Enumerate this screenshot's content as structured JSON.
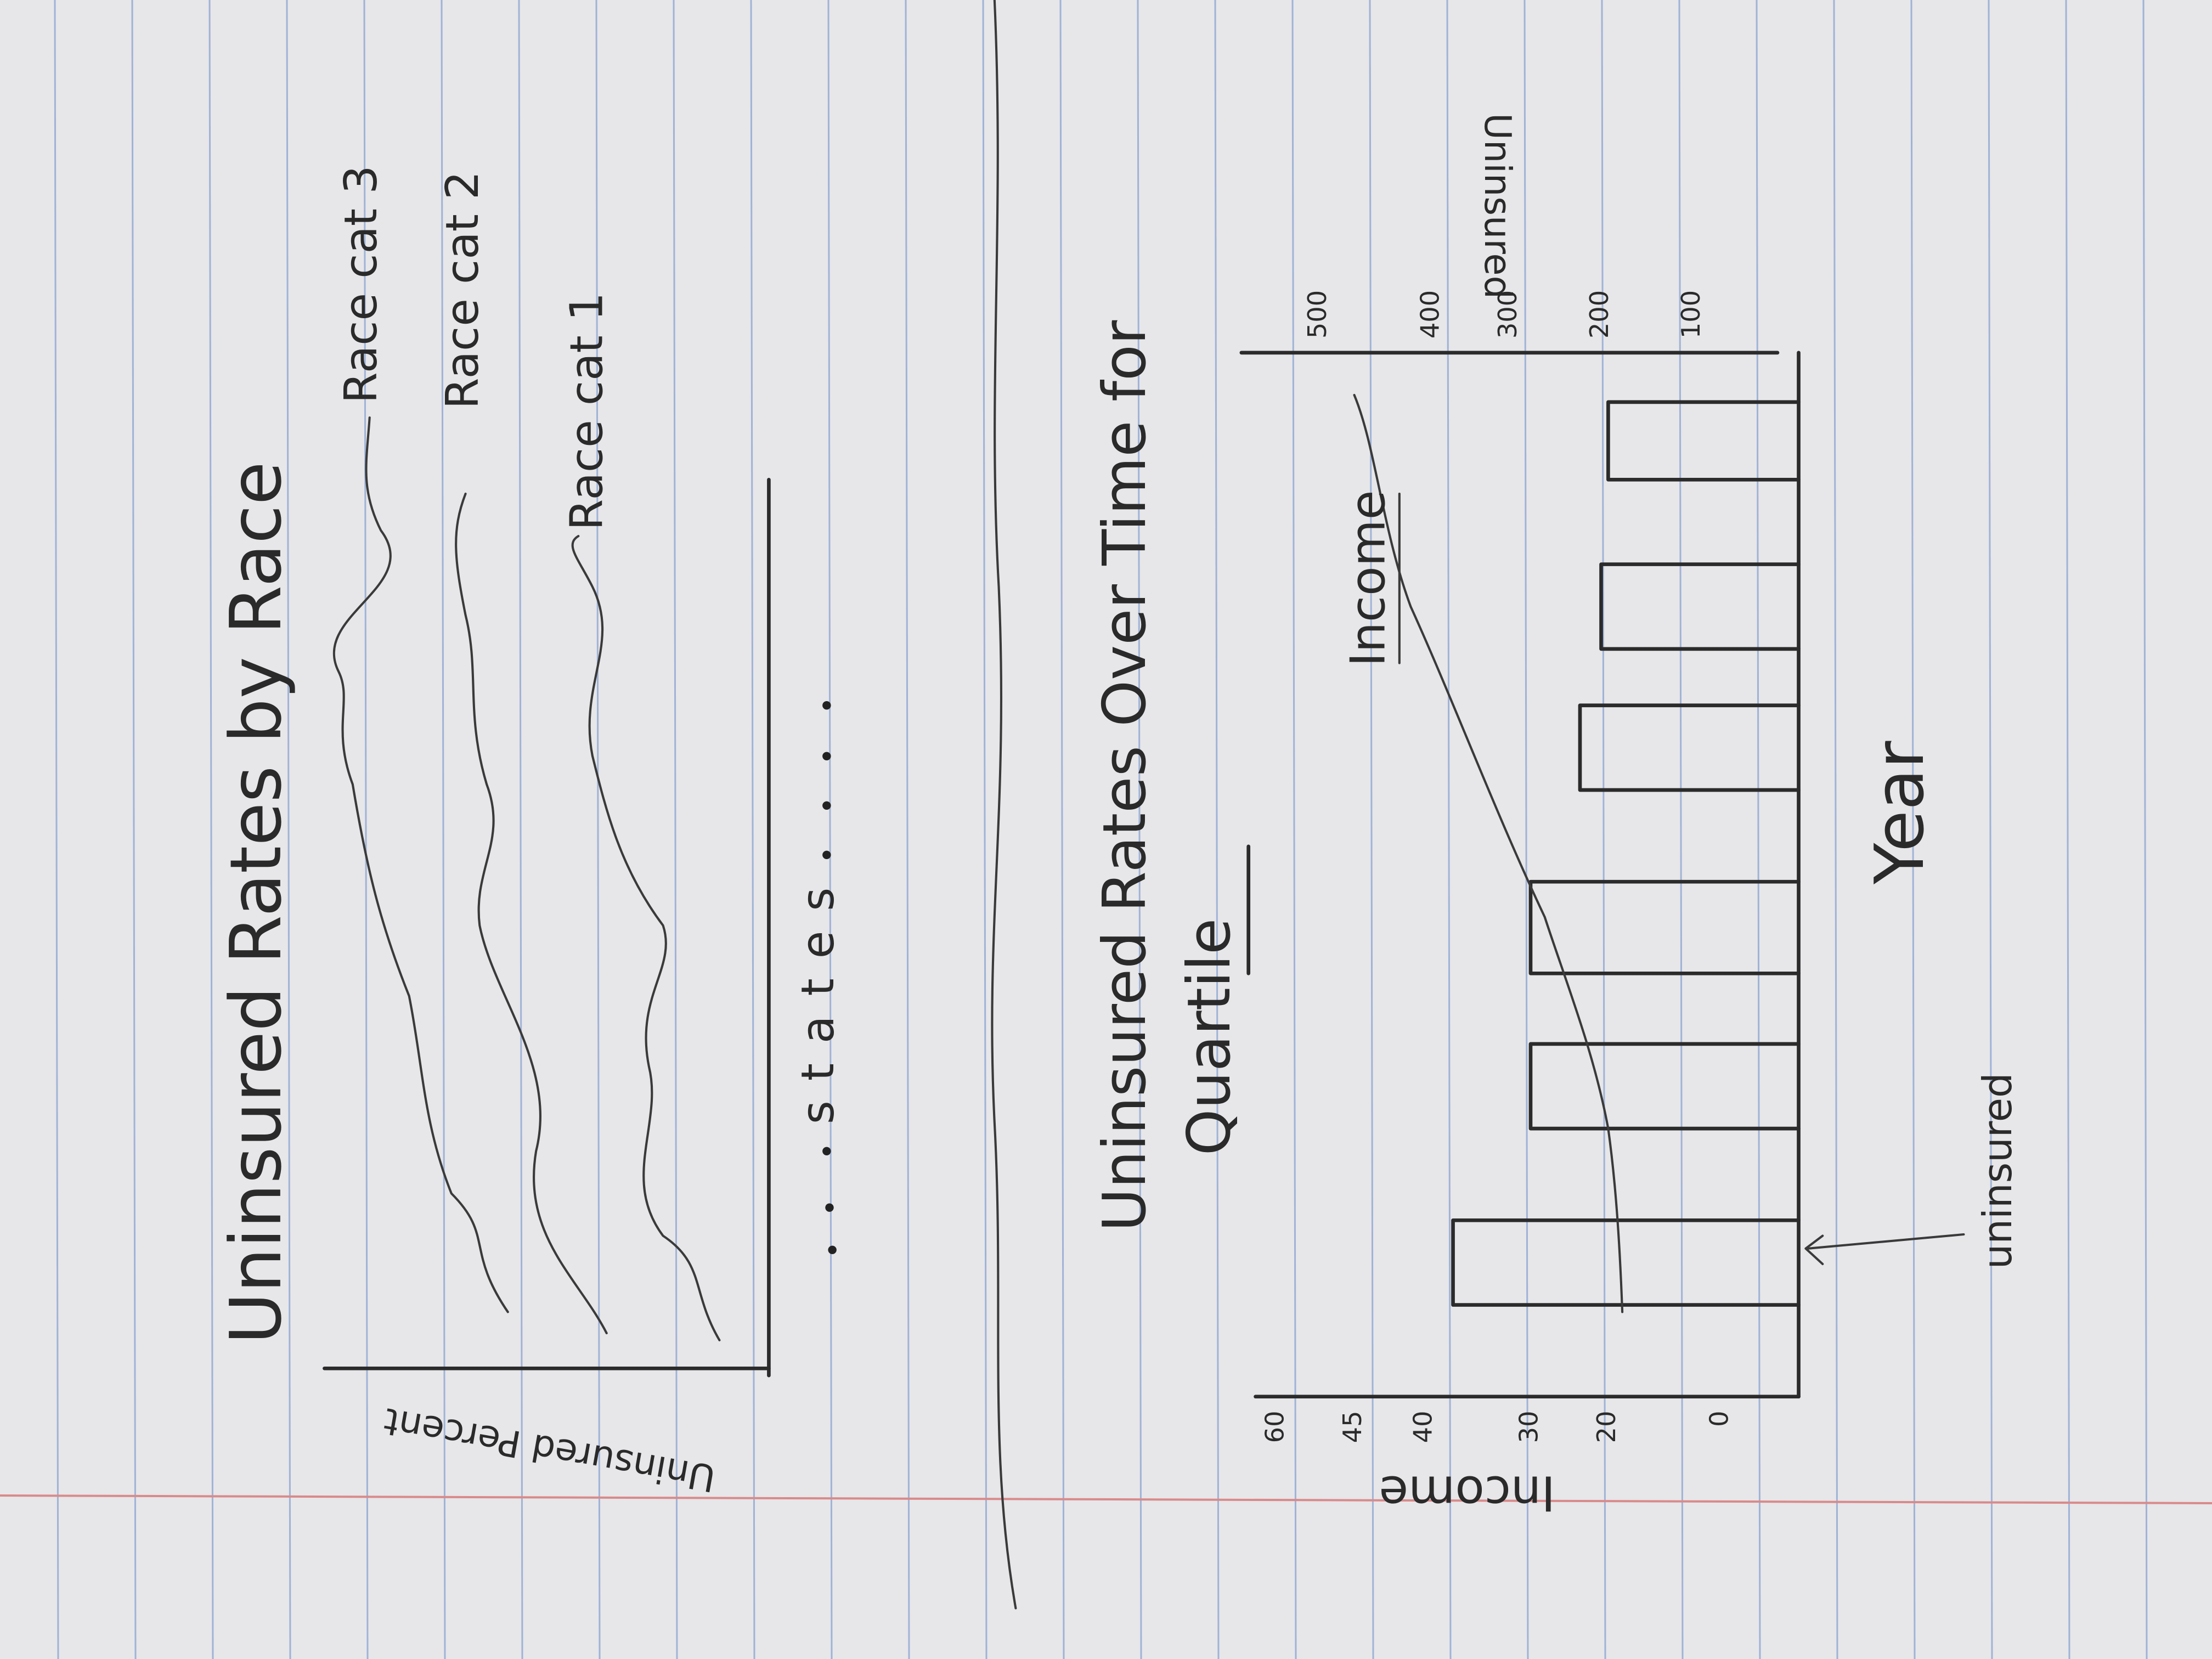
{
  "chart1": {
    "title": "Uninsured Rates by Race",
    "y_label": "Uninsured Percent",
    "x_label": "states",
    "line_labels": [
      "Race cat 3",
      "Race cat 2",
      "Race cat 1"
    ]
  },
  "chart2": {
    "title": [
      "Uninsured Rates Over Time for",
      "Quartile"
    ],
    "left_axis_label": "Income",
    "left_ticks": [
      "60",
      "45",
      "40",
      "30",
      "20",
      "0"
    ],
    "right_axis_label": "Uninsured",
    "right_ticks": [
      "500",
      "400",
      "300",
      "200",
      "100"
    ],
    "x_label": "Year",
    "line_label": "Income",
    "annotation": "uninsured"
  }
}
